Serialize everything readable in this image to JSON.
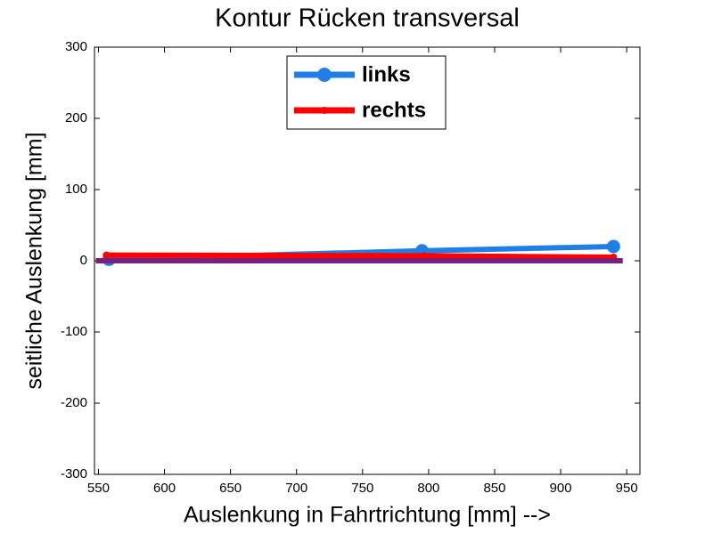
{
  "chart_data": {
    "type": "line",
    "title": "Kontur Rücken transversal",
    "xlabel": "Auslenkung in Fahrtrichtung [mm] -->",
    "ylabel": "seitliche Auslenkung [mm]",
    "xlim": [
      547,
      960
    ],
    "xticks": [
      550,
      600,
      650,
      700,
      750,
      800,
      850,
      900,
      950
    ],
    "ylim": [
      -300,
      300
    ],
    "yticks": [
      -300,
      -200,
      -100,
      0,
      100,
      200,
      300
    ],
    "legend": "top",
    "series": [
      {
        "name": "links",
        "color": "#1f7fe6",
        "marker": "o",
        "x": [
          558,
          795,
          940
        ],
        "values": [
          2,
          14,
          20
        ]
      },
      {
        "name": "rechts",
        "color": "#ff0000",
        "marker": "*",
        "x": [
          556,
          797,
          940
        ],
        "values": [
          8,
          7,
          5
        ]
      },
      {
        "color": "#7a1f7a",
        "x": [
          548,
          947
        ],
        "values": [
          0,
          0
        ]
      }
    ]
  }
}
